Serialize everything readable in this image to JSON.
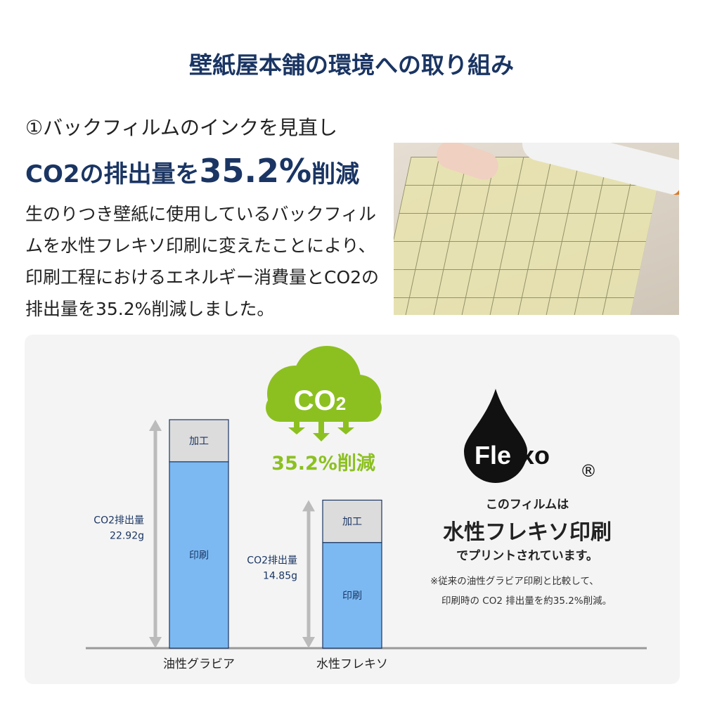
{
  "title": "壁紙屋本舗の環境への取り組み",
  "section": {
    "heading": "①バックフィルムのインクを見直し",
    "headline_pre": "CO2の排出量を",
    "headline_value": "35.2%",
    "headline_post": "削減",
    "body": "生のりつき壁紙に使用しているバックフィルムを水性フレキソ印刷に変えたことにより、印刷工程におけるエネルギー消費量とCO2の排出量を35.2%削減しました。"
  },
  "badge": {
    "co2_label": "CO2",
    "reduction": "35.2%削減",
    "color": "#8cc021"
  },
  "flexo": {
    "logo": "Flexo®",
    "line1": "このフィルムは",
    "line2": "水性フレキソ印刷",
    "line3": "でプリントされています。",
    "note1": "※従来の油性グラビア印刷と比較して、",
    "note2": "印刷時の CO2 排出量を約35.2%削減。"
  },
  "chart_data": {
    "type": "bar",
    "stacked": true,
    "categories": [
      "油性グラビア",
      "水性フレキソ"
    ],
    "series": [
      {
        "name": "印刷",
        "values": [
          18.7,
          10.6
        ],
        "color": "#7cb9f2"
      },
      {
        "name": "加工",
        "values": [
          4.22,
          4.25
        ],
        "color": "#dcdcdc"
      }
    ],
    "totals": [
      22.92,
      14.85
    ],
    "total_labels": [
      [
        "CO2排出量",
        "22.92g"
      ],
      [
        "CO2排出量",
        "14.85g"
      ]
    ],
    "ylim": [
      0,
      22.92
    ]
  }
}
